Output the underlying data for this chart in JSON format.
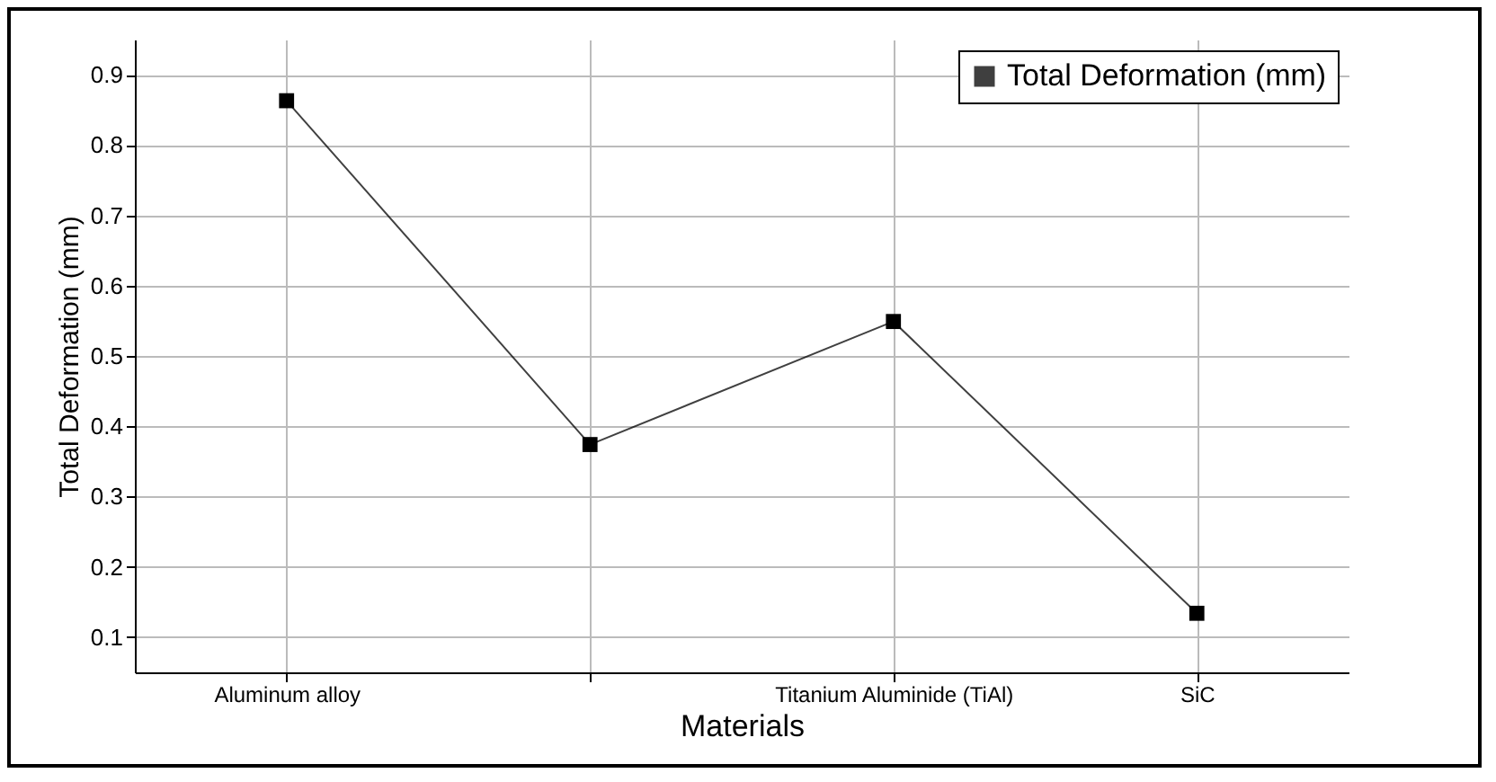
{
  "chart_data": {
    "type": "line",
    "xlabel": "Materials",
    "ylabel": "Total Deformation (mm)",
    "categories": [
      "Aluminum alloy",
      null,
      "Titanium Aluminide (TiAl)",
      "SiC"
    ],
    "series": [
      {
        "name": "Total Deformation (mm)",
        "color": "#000000",
        "values": [
          0.863,
          0.374,
          0.549,
          0.134
        ]
      }
    ],
    "ylim": [
      0.05,
      0.95
    ],
    "yticks": [
      0.1,
      0.2,
      0.3,
      0.4,
      0.5,
      0.6,
      0.7,
      0.8,
      0.9
    ],
    "grid": true,
    "legend": "top right",
    "marker": "square",
    "line_style": "solid"
  }
}
